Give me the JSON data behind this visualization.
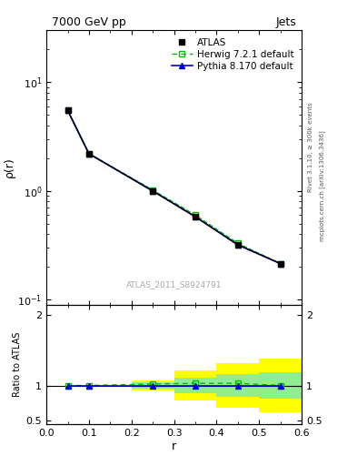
{
  "title_left": "7000 GeV pp",
  "title_right": "Jets",
  "watermark": "ATLAS_2011_S8924791",
  "rivet_label": "Rivet 3.1.10, ≥ 300k events",
  "arxiv_label": "mcplots.cern.ch [arXiv:1306.3436]",
  "ylabel_main": "ρ(r)",
  "ylabel_ratio": "Ratio to ATLAS",
  "xlabel": "r",
  "x_data": [
    0.05,
    0.1,
    0.25,
    0.35,
    0.45,
    0.55
  ],
  "atlas_y": [
    5.5,
    2.2,
    1.0,
    0.58,
    0.32,
    0.215
  ],
  "herwig_y": [
    5.5,
    2.2,
    1.02,
    0.6,
    0.33,
    0.215
  ],
  "pythia_y": [
    5.5,
    2.2,
    1.0,
    0.58,
    0.32,
    0.215
  ],
  "herwig_ratio": [
    1.0,
    1.0,
    1.02,
    1.03,
    1.03,
    1.0
  ],
  "pythia_ratio": [
    1.0,
    1.0,
    1.0,
    1.0,
    1.0,
    1.0
  ],
  "atlas_color": "#000000",
  "herwig_color": "#00bb00",
  "pythia_color": "#0000dd",
  "xlim": [
    0.0,
    0.6
  ],
  "ylim_main": [
    0.09,
    30.0
  ],
  "ylim_ratio": [
    0.45,
    2.15
  ],
  "ratio_edges": [
    0.0,
    0.15,
    0.2,
    0.3,
    0.4,
    0.5,
    0.6
  ],
  "yellow_lo": [
    1.0,
    1.0,
    0.93,
    0.78,
    0.68,
    0.62,
    0.62
  ],
  "yellow_hi": [
    1.0,
    1.0,
    1.07,
    1.22,
    1.32,
    1.38,
    1.38
  ],
  "green_lo": [
    1.0,
    1.0,
    0.96,
    0.89,
    0.84,
    0.81,
    0.81
  ],
  "green_hi": [
    1.0,
    1.0,
    1.04,
    1.11,
    1.16,
    1.19,
    1.19
  ]
}
